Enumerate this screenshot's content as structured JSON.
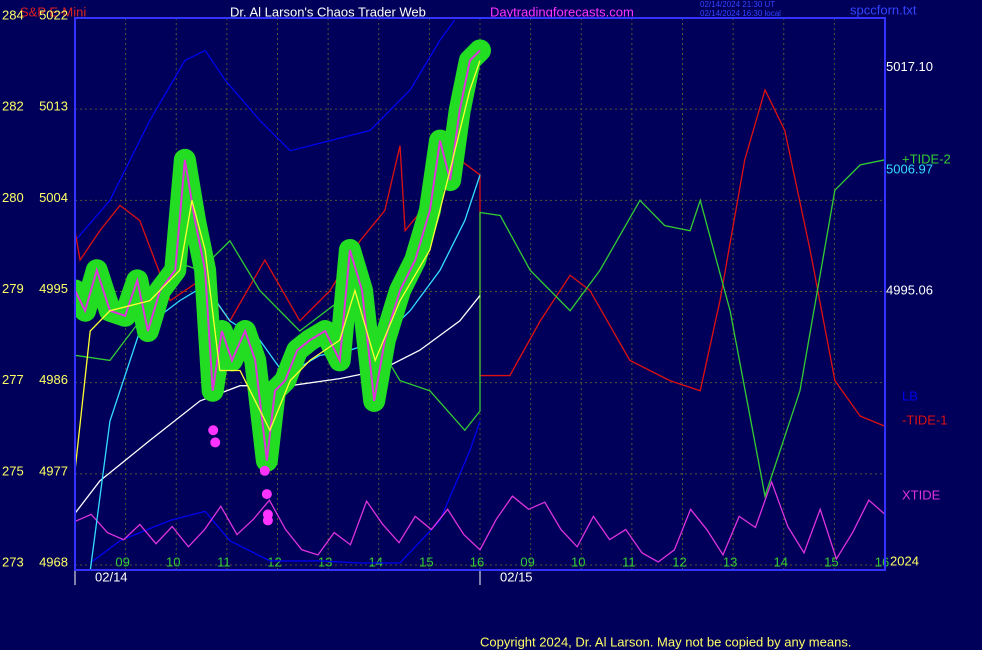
{
  "header": {
    "instrument": "S&P E-Mini",
    "site_title": "Dr. Al Larson's Chaos Trader Web",
    "url": "Daytradingforecasts.com",
    "time_ut": "02/14/2024 21:30 UT",
    "time_local": "02/14/2024 16:30 local",
    "file": "spccforn.txt"
  },
  "footer": {
    "copyright": "Copyright 2024, Dr. Al Larson. May not be copied by any means.",
    "year": "2024"
  },
  "chart_data": {
    "type": "line",
    "xlim": [
      0,
      16
    ],
    "xticks": [
      {
        "value": 1,
        "label": "09"
      },
      {
        "value": 2,
        "label": "10"
      },
      {
        "value": 3,
        "label": "11"
      },
      {
        "value": 4,
        "label": "12"
      },
      {
        "value": 5,
        "label": "13"
      },
      {
        "value": 6,
        "label": "14"
      },
      {
        "value": 7,
        "label": "15"
      },
      {
        "value": 8,
        "label": "16"
      },
      {
        "value": 9,
        "label": "09"
      },
      {
        "value": 10,
        "label": "10"
      },
      {
        "value": 11,
        "label": "11"
      },
      {
        "value": 12,
        "label": "12"
      },
      {
        "value": 13,
        "label": "13"
      },
      {
        "value": 14,
        "label": "14"
      },
      {
        "value": 15,
        "label": "15"
      },
      {
        "value": 16,
        "label": "16"
      }
    ],
    "dates": [
      {
        "value": 0,
        "label": "02/14"
      },
      {
        "value": 8,
        "label": "02/15"
      }
    ],
    "ylim": [
      4968,
      5022
    ],
    "yticks": [
      5022,
      5013,
      5004,
      4995,
      4986,
      4977,
      4968
    ],
    "ytick_alt_labels": [
      "284",
      "282",
      "280",
      "279",
      "277",
      "275",
      "273"
    ],
    "grid": true,
    "price_labels": [
      {
        "value": 5017.1,
        "label": "5017.10",
        "color": "#ffffff"
      },
      {
        "value": 5006.97,
        "color": "#33ddff"
      },
      {
        "value": 4995.06,
        "color": "#ffffff"
      }
    ],
    "series": [
      {
        "color": "#0000ee",
        "x": [
          0,
          0.69,
          1.48,
          2.17,
          2.57,
          2.96,
          3.65,
          4.25,
          5.04,
          5.83,
          6.62,
          7.21,
          7.5
        ],
        "values": [
          5000.0,
          5004.0,
          5011.9,
          5017.8,
          5018.8,
          5015.9,
          5011.9,
          5008.9,
          5009.9,
          5010.9,
          5014.9,
          5019.8,
          5021.8
        ]
      },
      {
        "name": "LB",
        "color": "#0000ee",
        "x": [
          0.3,
          0.89,
          1.88,
          2.57,
          3.06,
          3.85,
          4.84,
          5.63,
          6.42,
          7.21,
          7.8,
          8.0
        ],
        "values": [
          4968.2,
          4970.4,
          4972.4,
          4973.3,
          4970.4,
          4968.4,
          4968.4,
          4968.2,
          4968.2,
          4972.4,
          4979.3,
          4982.2
        ]
      },
      {
        "name": "XTIDE",
        "color": "#dd33dd",
        "x": [
          0,
          0.32,
          0.64,
          0.96,
          1.28,
          1.6,
          1.92,
          2.24,
          2.56,
          2.88,
          3.2,
          3.52,
          3.84,
          4.16,
          4.48,
          4.8,
          5.12,
          5.44,
          5.76,
          6.08,
          6.4,
          6.72,
          7.04,
          7.36,
          7.68,
          8,
          8.32,
          8.64,
          8.96,
          9.28,
          9.6,
          9.92,
          10.24,
          10.56,
          10.88,
          11.2,
          11.52,
          11.84,
          12.16,
          12.48,
          12.8,
          13.12,
          13.44,
          13.76,
          14.08,
          14.4,
          14.72,
          15.04,
          15.36,
          15.68,
          16
        ],
        "values": [
          4972.3,
          4973.0,
          4971.2,
          4970.5,
          4972.0,
          4970.1,
          4971.8,
          4969.8,
          4971.5,
          4973.8,
          4971.0,
          4972.5,
          4974.4,
          4971.5,
          4969.5,
          4969.0,
          4971.2,
          4970.0,
          4974.3,
          4972.0,
          4970.2,
          4972.8,
          4971.5,
          4973.5,
          4971.0,
          4969.5,
          4972.5,
          4974.8,
          4973.5,
          4974.2,
          4971.5,
          4969.8,
          4972.8,
          4970.5,
          4971.5,
          4969.2,
          4968.3,
          4969.5,
          4973.5,
          4971.5,
          4969.0,
          4972.8,
          4971.7,
          4976.2,
          4971.8,
          4969.2,
          4973.5,
          4968.6,
          4971.2,
          4974.4,
          4973.0
        ]
      },
      {
        "name": "-TIDE-1",
        "color": "#dd1111",
        "x": [
          0,
          0.1,
          0.49,
          0.89,
          1.28,
          1.88,
          2.47,
          3.06,
          3.75,
          4.44,
          5.04,
          5.63,
          6.12,
          6.42,
          6.52,
          7.01,
          7.6,
          8.0,
          8.0,
          8.59,
          9.19,
          9.78,
          10.17,
          10.96,
          11.75,
          12.35,
          12.74,
          13.23,
          13.63,
          14.02,
          14.52,
          15.01,
          15.51,
          16
        ],
        "values": [
          5001.0,
          4998.1,
          5001.0,
          5003.5,
          5002.0,
          4994.1,
          4996.1,
          4992.1,
          4998.1,
          4992.1,
          4995.1,
          5000.0,
          5003.0,
          5009.4,
          5001.0,
          5004.0,
          5008.0,
          5006.5,
          4986.7,
          4986.7,
          4992.1,
          4996.6,
          4995.1,
          4988.2,
          4986.2,
          4985.2,
          4994.1,
          5008.0,
          5014.9,
          5010.9,
          4999.1,
          4986.2,
          4982.7,
          4981.7
        ]
      },
      {
        "name": "+TIDE-2",
        "color": "#33cc33",
        "x": [
          0,
          0.69,
          1.28,
          1.88,
          2.47,
          3.06,
          3.65,
          4.44,
          5.23,
          5.83,
          6.42,
          7.01,
          7.7,
          8.0,
          8.0,
          8.4,
          8.99,
          9.78,
          10.37,
          11.16,
          11.65,
          12.15,
          12.35,
          12.94,
          13.63,
          14.32,
          15.01,
          15.51,
          16
        ],
        "values": [
          4988.7,
          4988.2,
          4992.1,
          4998.1,
          4997.1,
          5000.0,
          4995.1,
          4991.1,
          4994.1,
          4991.1,
          4986.2,
          4985.2,
          4981.3,
          4983.2,
          5002.8,
          5002.5,
          4997.1,
          4993.1,
          4997.1,
          5004.0,
          5001.5,
          5001.0,
          5004.0,
          4993.1,
          4974.8,
          4985.2,
          5005.0,
          5007.5,
          5008.0
        ]
      },
      {
        "color": "#ffffff",
        "x": [
          0,
          0.49,
          1.48,
          2.47,
          3.26,
          4.25,
          5.23,
          6.02,
          6.81,
          7.6,
          8.0
        ],
        "values": [
          4973.1,
          4976.3,
          4980.3,
          4984.2,
          4985.7,
          4985.7,
          4986.4,
          4987.2,
          4989.2,
          4992.1,
          4994.6
        ]
      },
      {
        "color": "#33ddff",
        "x": [
          0.3,
          0.69,
          1.28,
          2.07,
          2.57,
          3.06,
          3.65,
          4.15,
          4.84,
          5.43,
          6.02,
          6.62,
          7.21,
          7.7,
          8.0
        ],
        "values": [
          4967.4,
          4982.2,
          4991.1,
          4994.1,
          4995.6,
          4992.1,
          4990.2,
          4986.7,
          4988.7,
          4989.2,
          4990.2,
          4993.1,
          4997.1,
          5002.0,
          5006.5
        ]
      },
      {
        "color": "#dd33dd",
        "glow": "#22dd22",
        "x": [
          0,
          0.2,
          0.43,
          0.69,
          0.99,
          1.23,
          1.44,
          1.68,
          1.98,
          2.17,
          2.37,
          2.57,
          2.72,
          2.9,
          3.1,
          3.36,
          3.56,
          3.79,
          3.95,
          4.15,
          4.39,
          4.64,
          4.94,
          5.23,
          5.43,
          5.67,
          5.91,
          6.12,
          6.42,
          6.72,
          7.01,
          7.21,
          7.41,
          7.6,
          7.8,
          8.0
        ],
        "values": [
          4995.1,
          4993.1,
          4997.1,
          4993.1,
          4992.6,
          4996.1,
          4991.1,
          4995.1,
          4997.1,
          5008.0,
          5002.0,
          4997.1,
          4985.2,
          4991.1,
          4988.2,
          4991.1,
          4988.2,
          4978.3,
          4985.2,
          4986.2,
          4989.2,
          4990.2,
          4991.1,
          4988.2,
          4999.1,
          4995.1,
          4984.2,
          4990.2,
          4995.1,
          4998.1,
          5003.0,
          5009.9,
          5006.0,
          5012.9,
          5017.8,
          5018.8
        ]
      },
      {
        "color": "#ffff33",
        "x": [
          0,
          0.3,
          0.69,
          1.48,
          2.07,
          2.31,
          2.57,
          2.86,
          3.26,
          3.56,
          3.85,
          4.25,
          4.64,
          5.23,
          5.53,
          5.93,
          6.42,
          7.01,
          7.41,
          7.8,
          8.0
        ],
        "values": [
          4977.3,
          4991.1,
          4993.1,
          4994.1,
          4997.1,
          5004.0,
          4999.1,
          4987.2,
          4987.2,
          4984.2,
          4981.3,
          4986.2,
          4988.2,
          4990.2,
          4995.1,
          4988.2,
          4994.1,
          4999.1,
          5007.0,
          5014.9,
          5017.8
        ]
      },
      {
        "color": "#ff33ff",
        "mode": "markers",
        "x": [
          2.73,
          2.77,
          3.75,
          3.79,
          3.81,
          3.81
        ],
        "values": [
          4981.3,
          4980.1,
          4977.3,
          4975.0,
          4973.0,
          4972.4
        ]
      }
    ]
  }
}
